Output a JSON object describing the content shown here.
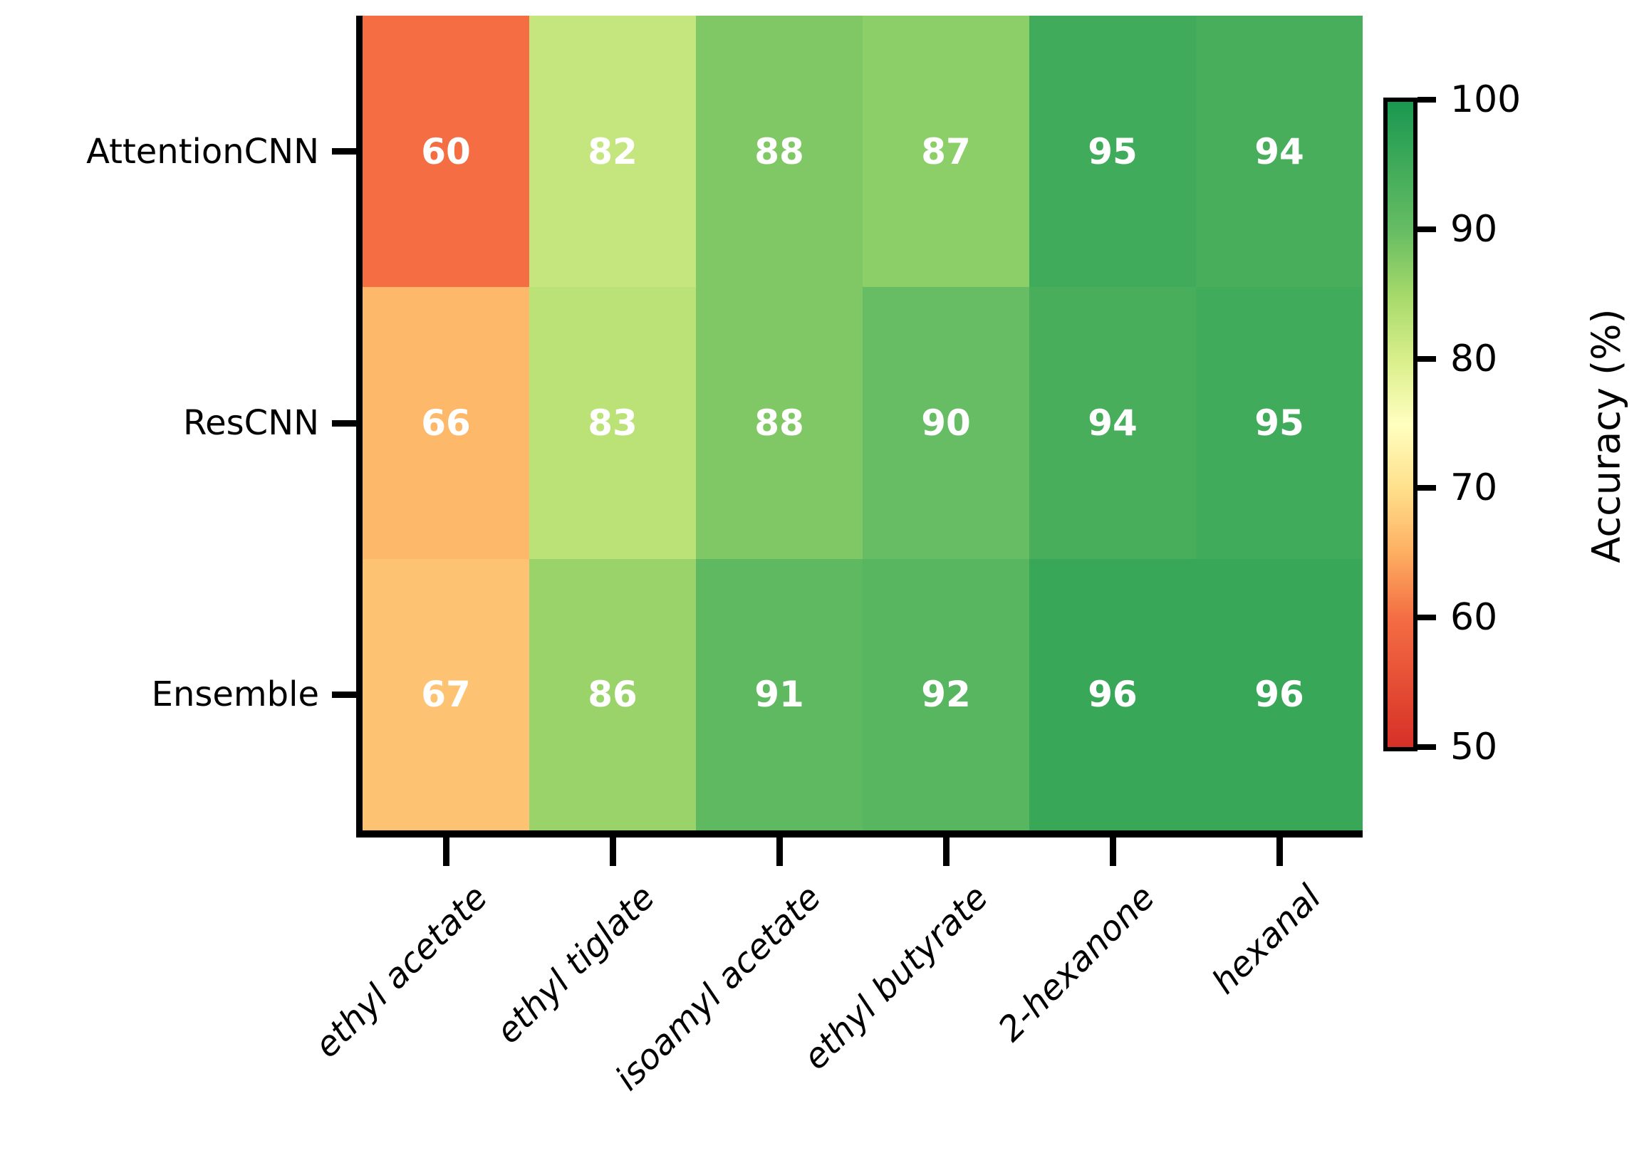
{
  "chart_data": {
    "type": "heatmap",
    "rows": [
      "AttentionCNN",
      "ResCNN",
      "Ensemble"
    ],
    "columns": [
      "ethyl acetate",
      "ethyl tiglate",
      "isoamyl acetate",
      "ethyl butyrate",
      "2-hexanone",
      "hexanal"
    ],
    "values": [
      [
        60,
        82,
        88,
        87,
        95,
        94
      ],
      [
        66,
        83,
        88,
        90,
        94,
        95
      ],
      [
        67,
        86,
        91,
        92,
        96,
        96
      ]
    ],
    "value_text_color": "#ffffff",
    "colorbar": {
      "label": "Accuracy (%)",
      "ticks": [
        50,
        60,
        70,
        80,
        90,
        100
      ],
      "min": 50,
      "max": 100
    },
    "colormap": {
      "name": "RdYlGn (truncated)",
      "anchor_values": [
        50,
        60,
        65,
        70,
        75,
        80,
        85,
        90,
        100
      ],
      "anchor_colors": [
        "#d73027",
        "#f46d43",
        "#fdae61",
        "#fee08b",
        "#ffffbf",
        "#d9ef8b",
        "#a6d96a",
        "#66bd63",
        "#1a9850"
      ]
    },
    "axis_color": "#000000",
    "grid": false,
    "legend_position": "right-colorbar"
  }
}
